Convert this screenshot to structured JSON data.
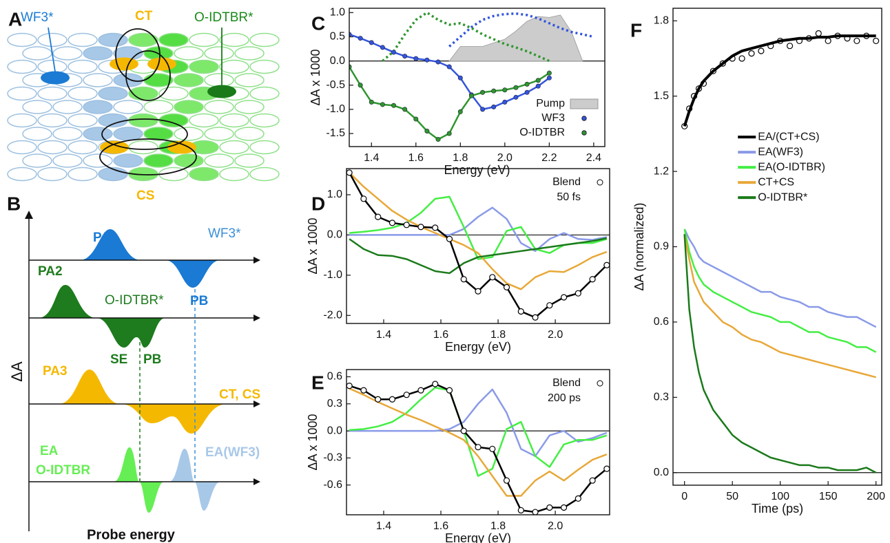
{
  "panel_labels": [
    "A",
    "B",
    "C",
    "D",
    "E",
    "F"
  ],
  "diagram_a": {
    "wf3": "WF3*",
    "ct": "CT",
    "oidtbr": "O-IDTBR*",
    "cs": "CS"
  },
  "diagram_b": {
    "pa1": "PA1",
    "wf3": "WF3*",
    "pb_wf3": "PB",
    "pa2": "PA2",
    "oidtbr": "O-IDTBR*",
    "se": "SE",
    "pb_oidtbr": "PB",
    "pa3": "PA3",
    "ct_cs": "CT, CS",
    "ea": "EA",
    "ea_oidtbr": "O-IDTBR",
    "ea_wf3": "EA(WF3)",
    "y_label": "ΔA",
    "x_label": "Probe energy"
  },
  "chart_data": [
    {
      "type": "line",
      "x_label": "Energy (eV)",
      "y_label": "ΔA x 1000",
      "legend": "lower right",
      "xlim": [
        1.3,
        2.45
      ],
      "xticks": [
        1.4,
        1.6,
        1.8,
        {
          "value": 2,
          "label": "2.0"
        },
        2.2,
        2.4
      ],
      "ylim": [
        -1.77,
        1.09
      ],
      "yticks": [
        -1.5,
        {
          "value": -1,
          "label": "-1.0"
        },
        -0.5,
        {
          "value": 0,
          "label": "0.0"
        },
        0.5,
        {
          "value": 1,
          "label": "1.0"
        }
      ],
      "x": [
        1.3,
        1.35,
        1.4,
        1.45,
        1.5,
        1.55,
        1.6,
        1.65,
        1.7,
        1.75,
        1.8,
        1.85,
        1.9,
        1.95,
        2.0,
        2.05,
        2.1,
        2.15,
        2.2
      ],
      "series": [
        {
          "name": "Pump",
          "style": "area",
          "color": "#cccccc",
          "x": [
            1.75,
            1.8,
            1.9,
            2.0,
            2.05,
            2.1,
            2.15,
            2.2,
            2.25,
            2.3,
            2.35
          ],
          "values": [
            0.0,
            0.3,
            0.3,
            0.45,
            0.62,
            0.82,
            0.92,
            0.9,
            0.95,
            0.6,
            0.0
          ]
        },
        {
          "style": "dotted",
          "color": "#3355dd",
          "x": [
            1.75,
            1.8,
            1.85,
            1.9,
            1.95,
            2.0,
            2.05,
            2.1,
            2.15,
            2.2,
            2.25,
            2.3,
            2.35,
            2.4
          ],
          "values": [
            0.3,
            0.5,
            0.7,
            0.85,
            0.93,
            0.97,
            0.98,
            0.95,
            0.88,
            0.78,
            0.68,
            0.6,
            0.55,
            0.5
          ]
        },
        {
          "style": "dotted",
          "color": "#2f962f",
          "x": [
            1.45,
            1.5,
            1.55,
            1.6,
            1.65,
            1.7,
            1.75,
            1.8,
            1.85,
            1.9,
            1.95,
            2.0,
            2.05,
            2.1,
            2.15,
            2.2
          ],
          "values": [
            0,
            0.2,
            0.55,
            0.85,
            1.0,
            0.85,
            0.75,
            0.78,
            0.68,
            0.55,
            0.45,
            0.35,
            0.28,
            0.2,
            0.1,
            0
          ]
        },
        {
          "name": "WF3",
          "style": "markers+line",
          "marker": "filled",
          "color": "#3355dd",
          "values": [
            0.55,
            0.47,
            0.38,
            0.28,
            0.18,
            0.1,
            0.05,
            0.02,
            -0.02,
            -0.12,
            -0.35,
            -0.7,
            -1.0,
            -0.95,
            -0.85,
            -0.75,
            -0.65,
            -0.52,
            -0.35
          ]
        },
        {
          "name": "O-IDTBR",
          "style": "markers+line",
          "marker": "filled",
          "color": "#2f962f",
          "values": [
            -0.12,
            -0.5,
            -0.85,
            -0.9,
            -0.92,
            -1.0,
            -1.2,
            -1.45,
            -1.62,
            -1.5,
            -1.05,
            -0.72,
            -0.65,
            -0.62,
            -0.6,
            -0.55,
            -0.48,
            -0.4,
            -0.25
          ]
        }
      ]
    },
    {
      "type": "line",
      "x_label": "Energy (eV)",
      "y_label": "ΔA x 1000",
      "legend": "upper right",
      "annotation": "50 fs",
      "xlim": [
        1.27,
        2.19
      ],
      "xticks": [
        1.4,
        1.6,
        1.8,
        {
          "value": 2,
          "label": "2.0"
        }
      ],
      "ylim": [
        -2.2,
        1.65
      ],
      "yticks": [
        {
          "value": -2,
          "label": "-2.0"
        },
        {
          "value": -1,
          "label": "-1.0"
        },
        {
          "value": 0,
          "label": "0.0"
        },
        {
          "value": 1,
          "label": "1.0"
        }
      ],
      "x": [
        1.28,
        1.33,
        1.38,
        1.43,
        1.48,
        1.53,
        1.58,
        1.63,
        1.68,
        1.73,
        1.78,
        1.83,
        1.88,
        1.93,
        1.98,
        2.03,
        2.08,
        2.13,
        2.18
      ],
      "series": [
        {
          "style": "line",
          "color": "#8a9ae8",
          "values": [
            0,
            0,
            0,
            0,
            0,
            0,
            0,
            0,
            0.15,
            0.45,
            0.68,
            0.4,
            -0.2,
            -0.4,
            -0.1,
            0.05,
            -0.1,
            -0.12,
            -0.05
          ]
        },
        {
          "style": "line",
          "color": "#44ee44",
          "values": [
            0.05,
            0.08,
            0.12,
            0.18,
            0.3,
            0.55,
            0.9,
            0.95,
            0.2,
            -0.6,
            -0.55,
            0.1,
            0.2,
            -0.35,
            -0.45,
            -0.25,
            -0.2,
            -0.2,
            -0.1
          ]
        },
        {
          "style": "line",
          "color": "#e8a838",
          "values": [
            1.55,
            1.2,
            0.9,
            0.6,
            0.38,
            0.2,
            0.05,
            -0.1,
            -0.25,
            -0.45,
            -0.85,
            -1.2,
            -1.35,
            -1.05,
            -0.9,
            -0.92,
            -0.75,
            -0.55,
            -0.42
          ]
        },
        {
          "style": "line",
          "color": "#1a7a1a",
          "values": [
            -0.1,
            -0.35,
            -0.5,
            -0.52,
            -0.6,
            -0.75,
            -0.9,
            -0.95,
            -0.7,
            -0.55,
            -0.5,
            -0.45,
            -0.4,
            -0.35,
            -0.3,
            -0.25,
            -0.2,
            -0.15,
            -0.08
          ]
        },
        {
          "name": "Blend",
          "style": "markers+line",
          "marker": "open",
          "color": "#000000",
          "values": [
            1.55,
            0.9,
            0.45,
            0.3,
            0.25,
            0.2,
            0.18,
            -0.1,
            -1.1,
            -1.4,
            -1.05,
            -1.3,
            -1.9,
            -2.05,
            -1.75,
            -1.55,
            -1.45,
            -1.1,
            -0.75
          ]
        }
      ]
    },
    {
      "type": "line",
      "x_label": "Energy (eV)",
      "y_label": "ΔA x 1000",
      "legend": "upper right",
      "annotation": "200 ps",
      "xlim": [
        1.27,
        2.19
      ],
      "xticks": [
        1.4,
        1.6,
        1.8,
        {
          "value": 2,
          "label": "2.0"
        }
      ],
      "ylim": [
        -0.93,
        0.68
      ],
      "yticks": [
        -0.6,
        -0.3,
        {
          "value": 0,
          "label": "0.0"
        },
        0.3,
        0.6
      ],
      "x": [
        1.28,
        1.33,
        1.38,
        1.43,
        1.48,
        1.53,
        1.58,
        1.63,
        1.68,
        1.73,
        1.78,
        1.83,
        1.88,
        1.93,
        1.98,
        2.03,
        2.08,
        2.13,
        2.18
      ],
      "series": [
        {
          "style": "line",
          "color": "#8a9ae8",
          "values": [
            0,
            0,
            0,
            0,
            0,
            0,
            0,
            0.02,
            0.1,
            0.3,
            0.46,
            0.2,
            -0.2,
            -0.28,
            -0.05,
            0.0,
            -0.12,
            -0.08,
            -0.02
          ]
        },
        {
          "style": "line",
          "color": "#44ee44",
          "values": [
            0.01,
            0.02,
            0.05,
            0.1,
            0.2,
            0.35,
            0.48,
            0.45,
            0.0,
            -0.5,
            -0.42,
            0.02,
            0.1,
            -0.28,
            -0.4,
            -0.15,
            -0.1,
            -0.1,
            -0.05
          ]
        },
        {
          "style": "line",
          "color": "#e8a838",
          "values": [
            0.47,
            0.4,
            0.32,
            0.25,
            0.18,
            0.12,
            0.05,
            -0.02,
            -0.1,
            -0.28,
            -0.5,
            -0.72,
            -0.72,
            -0.55,
            -0.45,
            -0.55,
            -0.43,
            -0.32,
            -0.26
          ]
        },
        {
          "name": "Blend",
          "style": "markers+line",
          "marker": "open",
          "color": "#000000",
          "values": [
            0.5,
            0.45,
            0.35,
            0.35,
            0.4,
            0.45,
            0.52,
            0.45,
            0.0,
            -0.18,
            -0.2,
            -0.55,
            -0.88,
            -0.9,
            -0.85,
            -0.85,
            -0.75,
            -0.55,
            -0.42
          ]
        }
      ]
    },
    {
      "type": "line",
      "x_label": "Time (ps)",
      "y_label": "ΔA (normalized)",
      "legend": "center right",
      "xlim": [
        -12,
        206
      ],
      "xticks": [
        0,
        50,
        100,
        150,
        200
      ],
      "ylim": [
        -0.05,
        1.85
      ],
      "yticks": [
        {
          "value": 0,
          "label": "0.0"
        },
        0.3,
        0.6,
        0.9,
        1.2,
        1.5,
        1.8
      ],
      "x": [
        0,
        5,
        10,
        15,
        20,
        30,
        40,
        50,
        60,
        70,
        80,
        90,
        100,
        110,
        120,
        130,
        140,
        150,
        160,
        170,
        180,
        190,
        200
      ],
      "series": [
        {
          "style": "markers",
          "marker": "open",
          "color": "#000000",
          "values": [
            1.38,
            1.45,
            1.5,
            1.53,
            1.55,
            1.6,
            1.63,
            1.65,
            1.65,
            1.67,
            1.68,
            1.7,
            1.72,
            1.7,
            1.72,
            1.73,
            1.75,
            1.72,
            1.74,
            1.73,
            1.72,
            1.74,
            1.72
          ]
        },
        {
          "name": "EA/(CT+CS)",
          "style": "line",
          "line_width": 4,
          "color": "#000000",
          "values": [
            1.38,
            1.44,
            1.49,
            1.53,
            1.56,
            1.6,
            1.63,
            1.66,
            1.68,
            1.69,
            1.7,
            1.71,
            1.72,
            1.725,
            1.73,
            1.73,
            1.735,
            1.735,
            1.74,
            1.74,
            1.74,
            1.74,
            1.74
          ]
        },
        {
          "name": "EA(WF3)",
          "style": "line",
          "color": "#8a9ae8",
          "values": [
            0.97,
            0.93,
            0.9,
            0.86,
            0.84,
            0.82,
            0.8,
            0.78,
            0.76,
            0.74,
            0.72,
            0.72,
            0.7,
            0.69,
            0.68,
            0.66,
            0.66,
            0.64,
            0.63,
            0.62,
            0.62,
            0.6,
            0.58
          ]
        },
        {
          "name": "EA(O-IDTBR)",
          "style": "line",
          "color": "#44ee44",
          "values": [
            0.97,
            0.88,
            0.82,
            0.78,
            0.75,
            0.72,
            0.7,
            0.68,
            0.66,
            0.64,
            0.63,
            0.62,
            0.6,
            0.6,
            0.58,
            0.56,
            0.56,
            0.54,
            0.53,
            0.52,
            0.5,
            0.5,
            0.48
          ]
        },
        {
          "name": "CT+CS",
          "style": "line",
          "color": "#e8a838",
          "values": [
            0.95,
            0.85,
            0.76,
            0.72,
            0.68,
            0.64,
            0.6,
            0.58,
            0.55,
            0.53,
            0.52,
            0.5,
            0.48,
            0.47,
            0.46,
            0.45,
            0.44,
            0.43,
            0.42,
            0.41,
            0.4,
            0.39,
            0.38
          ]
        },
        {
          "name": "O-IDTBR*",
          "style": "line",
          "color": "#1a7a1a",
          "values": [
            0.95,
            0.65,
            0.5,
            0.4,
            0.33,
            0.25,
            0.2,
            0.15,
            0.12,
            0.1,
            0.08,
            0.06,
            0.05,
            0.04,
            0.03,
            0.03,
            0.02,
            0.02,
            0.01,
            0.01,
            0.01,
            0.02,
            0.0
          ]
        }
      ]
    }
  ]
}
